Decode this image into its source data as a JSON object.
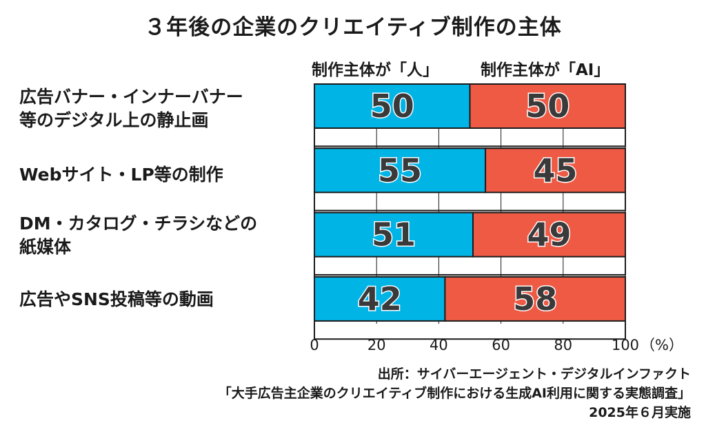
{
  "chart_data": {
    "type": "bar",
    "orientation": "horizontal",
    "stacked": true,
    "title": "３年後の企業のクリエイティブ制作の主体",
    "categories": [
      [
        "広告バナー・インナーバナー",
        "等のデジタル上の静止画"
      ],
      [
        "Webサイト・LP等の制作"
      ],
      [
        "DM・カタログ・チラシなどの",
        "紙媒体"
      ],
      [
        "広告やSNS投稿等の動画"
      ]
    ],
    "series": [
      {
        "name": "制作主体が「人」",
        "values": [
          50,
          55,
          51,
          42
        ],
        "color": "#00b4e6"
      },
      {
        "name": "制作主体が「AI」",
        "values": [
          50,
          45,
          49,
          58
        ],
        "color": "#ef5a45"
      }
    ],
    "xlim": [
      0,
      100
    ],
    "xticks": [
      "0",
      "20",
      "40",
      "60",
      "80",
      "100"
    ],
    "x_unit": "（%）",
    "xlabel": "",
    "ylabel": ""
  },
  "source": {
    "line1": "出所：サイバーエージェント・デジタルインファクト",
    "line2": "「大手広告主企業のクリエイティブ制作における生成AI利用に関する実態調査」",
    "line3": "2025年６月実施"
  }
}
